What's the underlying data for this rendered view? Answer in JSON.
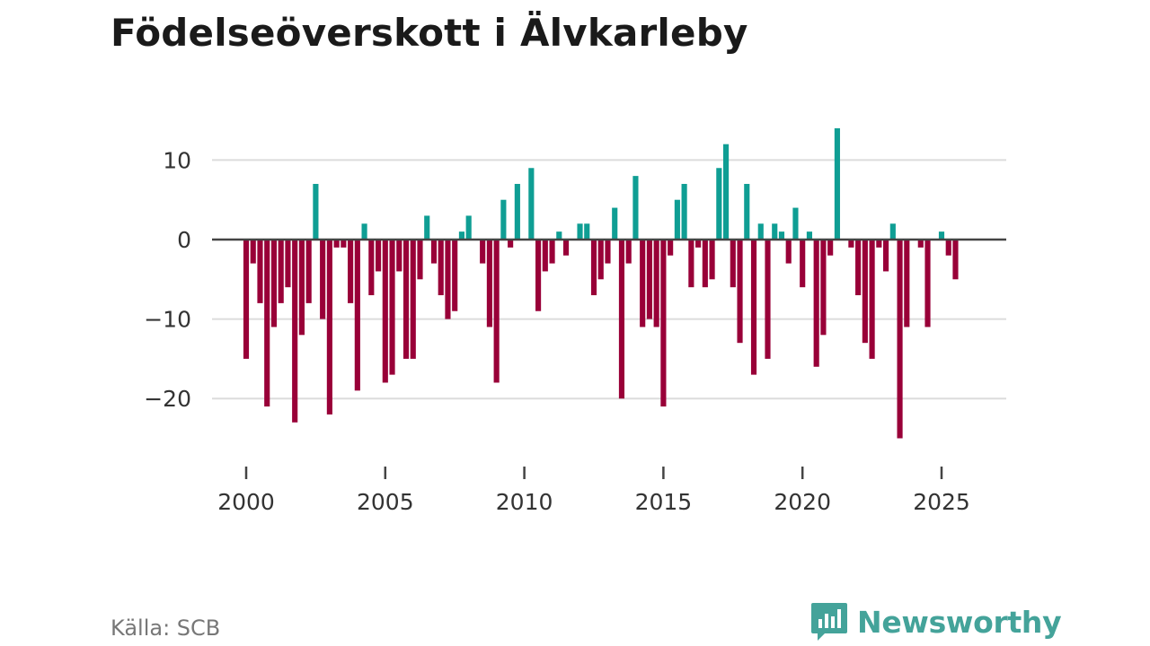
{
  "title": "Födelseöverskott i Älvkarleby",
  "source": "Källa: SCB",
  "brand": {
    "name": "Newsworthy",
    "icon": "newsworthy-logo-icon"
  },
  "colors": {
    "positive": "#0f9e94",
    "negative": "#990038",
    "grid": "#dcdcdc",
    "zero_line": "#444444",
    "tick_text": "#333333",
    "brand": "#44a39a"
  },
  "chart_data": {
    "type": "bar",
    "title": "Födelseöverskott i Älvkarleby",
    "xlabel": "",
    "ylabel": "",
    "frequency": "quarterly",
    "x_start": 2000.0,
    "x_step": 0.25,
    "xlim": [
      1999.75,
      2027.25
    ],
    "ylim": [
      -28,
      15
    ],
    "yticks": [
      10,
      0,
      -10,
      -20
    ],
    "ytick_labels": [
      "10",
      "0",
      "−10",
      "−20"
    ],
    "xticks": [
      2000,
      2005,
      2010,
      2015,
      2020,
      2025
    ],
    "xtick_labels": [
      "2000",
      "2005",
      "2010",
      "2015",
      "2020",
      "2025"
    ],
    "grid": true,
    "values": [
      -15,
      -3,
      -8,
      -21,
      -11,
      -8,
      -6,
      -23,
      -12,
      -8,
      7,
      -10,
      -22,
      -1,
      -1,
      -8,
      -19,
      2,
      -7,
      -4,
      -18,
      -17,
      -4,
      -15,
      -15,
      -5,
      3,
      -3,
      -7,
      -10,
      -9,
      1,
      3,
      0,
      -3,
      -11,
      -18,
      5,
      -1,
      7,
      0,
      9,
      -9,
      -4,
      -3,
      1,
      -2,
      0,
      2,
      2,
      -7,
      -5,
      -3,
      4,
      -20,
      -3,
      8,
      -11,
      -10,
      -11,
      -21,
      -2,
      5,
      7,
      -6,
      -1,
      -6,
      -5,
      9,
      12,
      -6,
      -13,
      7,
      -17,
      2,
      -15,
      2,
      1,
      -3,
      4,
      -6,
      1,
      -16,
      -12,
      -2,
      14,
      0,
      -1,
      -7,
      -13,
      -15,
      -1,
      -4,
      2,
      -25,
      -11,
      0,
      -1,
      -11,
      0,
      1,
      -2,
      -5
    ]
  }
}
